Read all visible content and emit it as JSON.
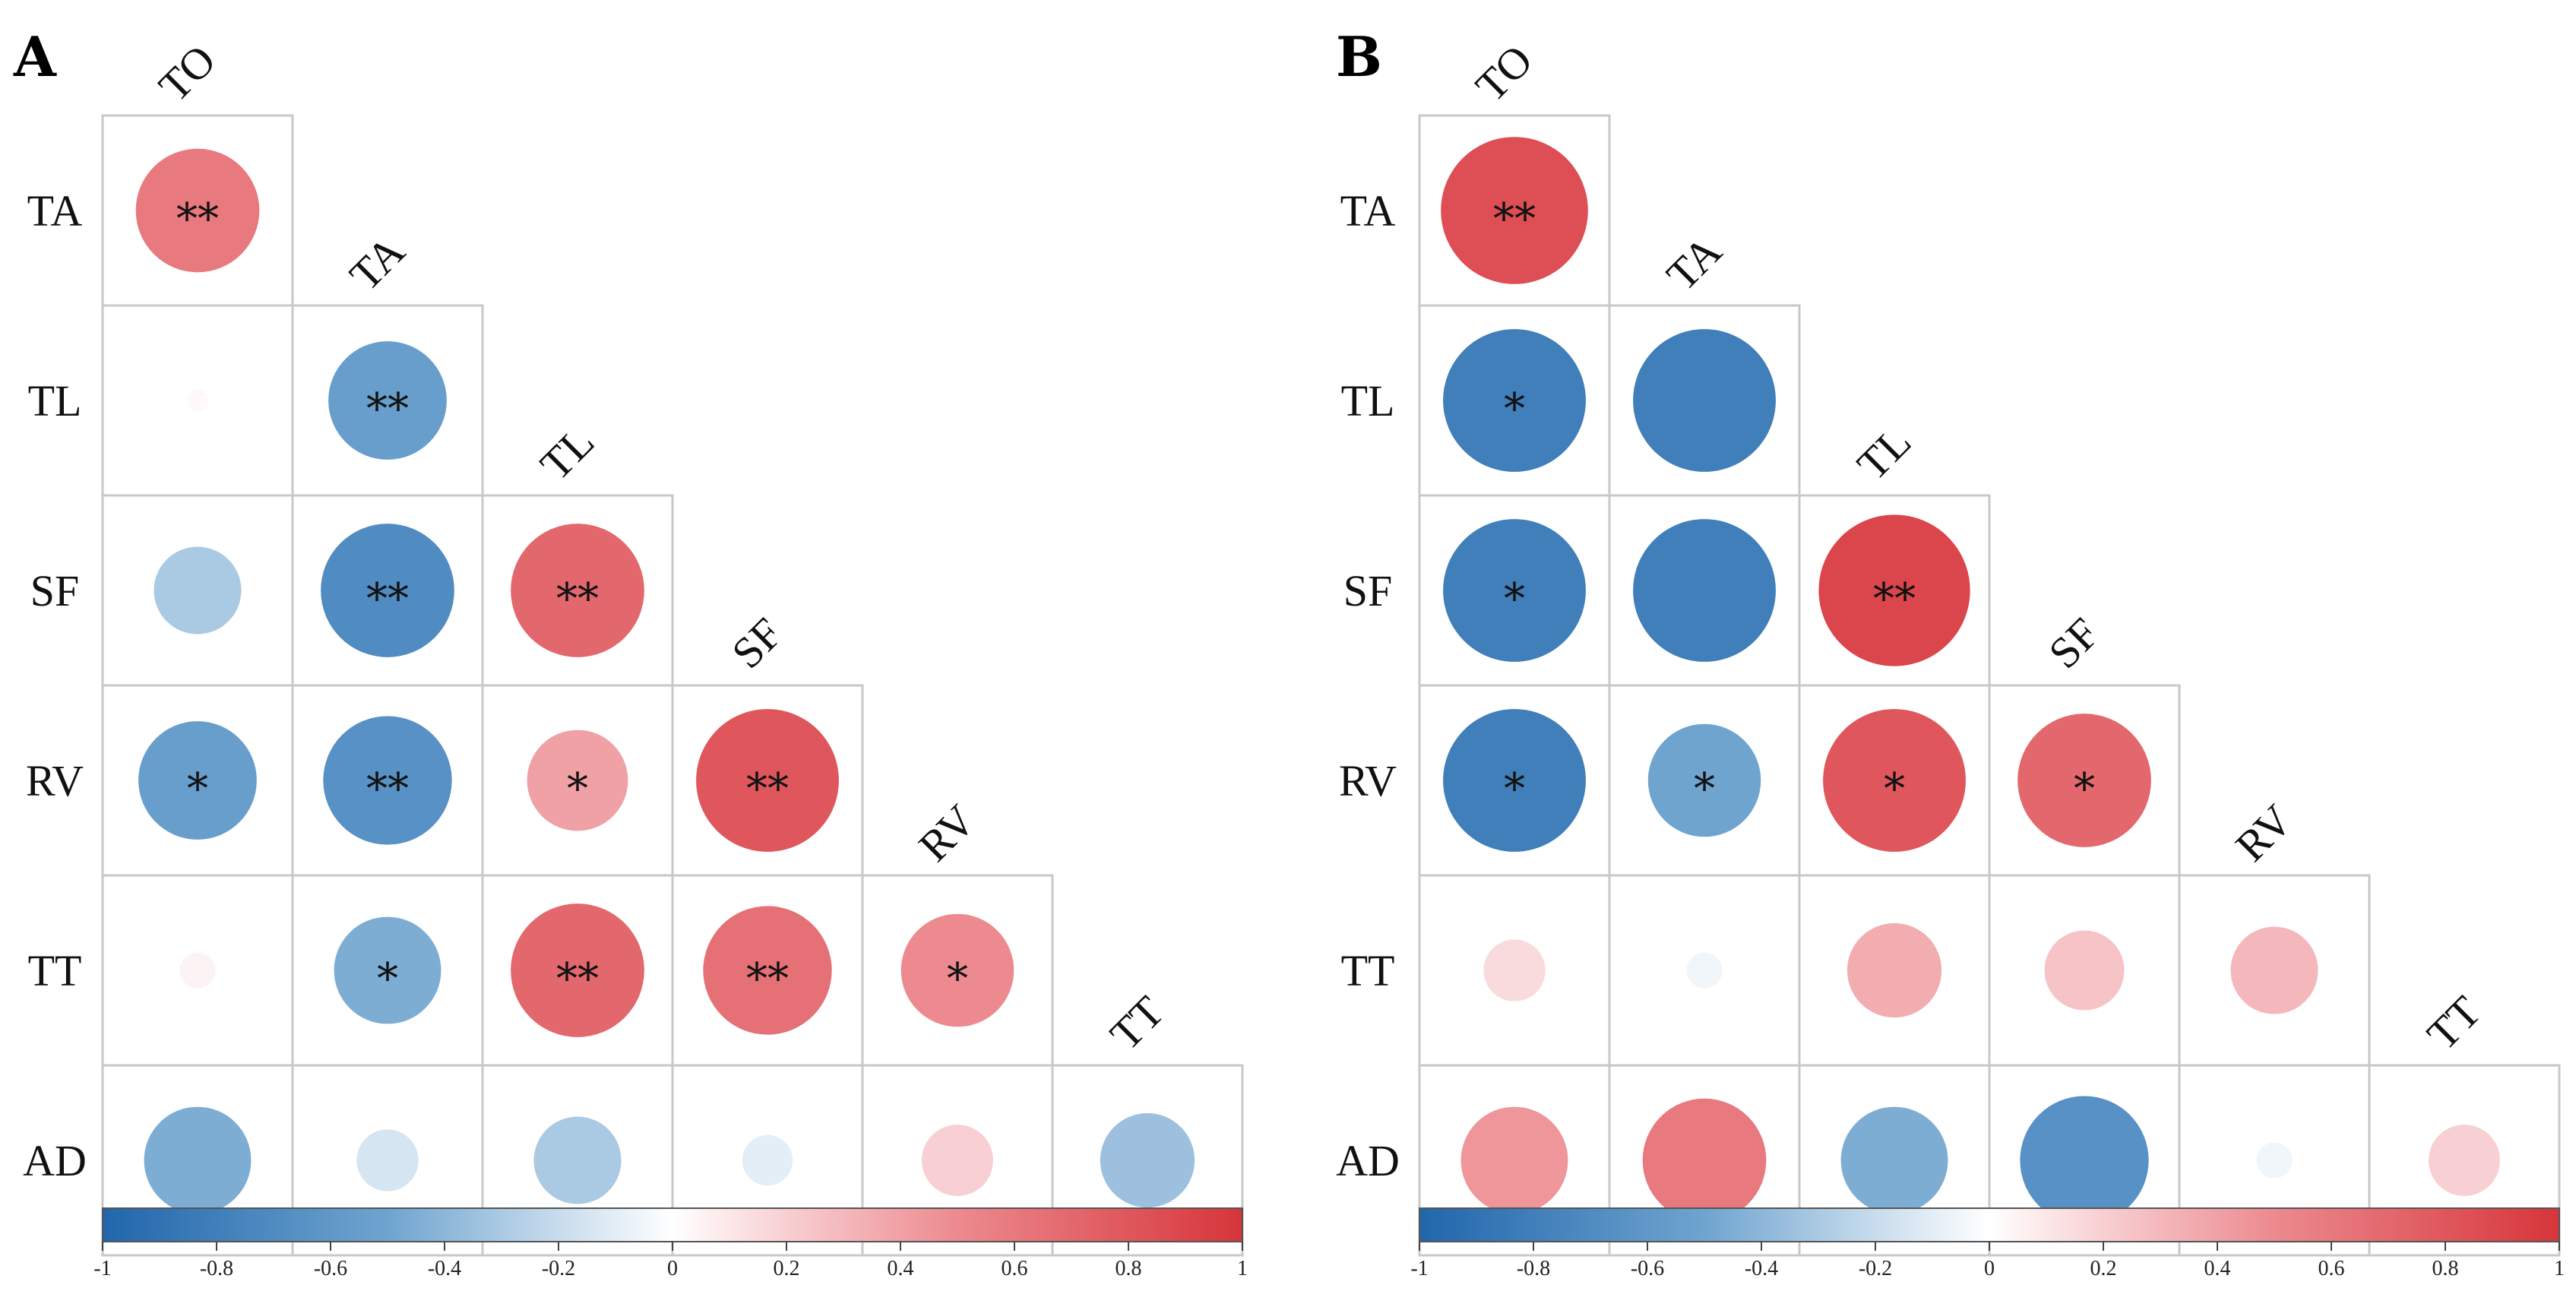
{
  "chart_data": [
    {
      "type": "correlation-matrix",
      "panel": "A",
      "variables": [
        "TO",
        "TA",
        "TL",
        "SF",
        "RV",
        "TT",
        "AD"
      ],
      "column_labels": [
        "TO",
        "TA",
        "TL",
        "SF",
        "RV",
        "TT"
      ],
      "row_labels": [
        "TA",
        "TL",
        "SF",
        "RV",
        "TT",
        "AD"
      ],
      "colorbar": {
        "range": [
          -1,
          1
        ],
        "ticks": [
          "-1",
          "-0.8",
          "-0.6",
          "-0.4",
          "-0.2",
          "0",
          "0.2",
          "0.4",
          "0.6",
          "0.8",
          "1"
        ]
      },
      "values": [
        [
          0.6
        ],
        [
          0.02,
          -0.55
        ],
        [
          -0.3,
          -0.7,
          0.7
        ],
        [
          -0.55,
          -0.65,
          0.4,
          0.8
        ],
        [
          0.05,
          -0.45,
          0.7,
          0.65,
          0.5
        ],
        [
          -0.45,
          -0.15,
          -0.3,
          -0.1,
          0.2,
          -0.35
        ]
      ],
      "significance": [
        [
          "**"
        ],
        [
          "",
          "**"
        ],
        [
          "",
          "**",
          "**"
        ],
        [
          "*",
          "**",
          "*",
          "**"
        ],
        [
          "",
          "*",
          "**",
          "**",
          "*"
        ],
        [
          "",
          "",
          "",
          "",
          "",
          ""
        ]
      ]
    },
    {
      "type": "correlation-matrix",
      "panel": "B",
      "variables": [
        "TO",
        "TA",
        "TL",
        "SF",
        "RV",
        "TT",
        "AD"
      ],
      "column_labels": [
        "TO",
        "TA",
        "TL",
        "SF",
        "RV",
        "TT"
      ],
      "row_labels": [
        "TA",
        "TL",
        "SF",
        "RV",
        "TT",
        "AD"
      ],
      "colorbar": {
        "range": [
          -1,
          1
        ],
        "ticks": [
          "-1",
          "-0.8",
          "-0.6",
          "-0.4",
          "-0.2",
          "0",
          "0.2",
          "0.4",
          "0.6",
          "0.8",
          "1"
        ]
      },
      "values": [
        [
          0.85
        ],
        [
          -0.8,
          -0.8
        ],
        [
          -0.8,
          -0.8,
          0.9
        ],
        [
          -0.8,
          -0.5,
          0.8,
          0.7
        ],
        [
          0.15,
          -0.05,
          0.35,
          0.25,
          0.3
        ],
        [
          0.45,
          0.6,
          -0.45,
          -0.65,
          -0.05,
          0.2
        ]
      ],
      "significance": [
        [
          "**"
        ],
        [
          "*",
          ""
        ],
        [
          "*",
          "",
          "**"
        ],
        [
          "*",
          "*",
          "*",
          "*"
        ],
        [
          "",
          "",
          "",
          "",
          ""
        ],
        [
          "",
          "",
          "",
          "",
          "",
          ""
        ]
      ]
    }
  ]
}
